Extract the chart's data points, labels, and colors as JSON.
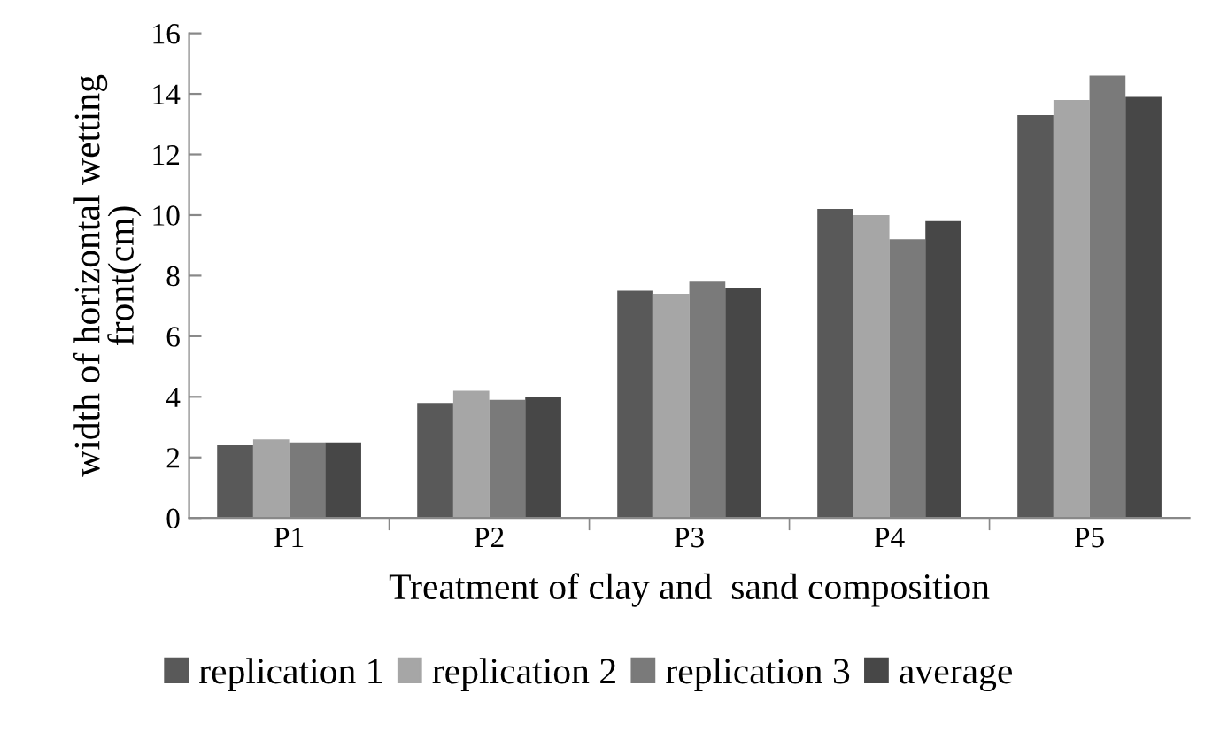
{
  "chart_data": {
    "type": "bar",
    "xlabel": "Treatment of clay and  sand composition",
    "ylabel": "width of horizontal wetting\nfront(cm)",
    "categories": [
      "P1",
      "P2",
      "P3",
      "P4",
      "P5"
    ],
    "series": [
      {
        "name": "replication 1",
        "color": "#595959",
        "values": [
          2.4,
          3.8,
          7.5,
          10.2,
          13.3
        ]
      },
      {
        "name": "replication 2",
        "color": "#a6a6a6",
        "values": [
          2.6,
          4.2,
          7.4,
          10.0,
          13.8
        ]
      },
      {
        "name": "replication 3",
        "color": "#7a7a7a",
        "values": [
          2.5,
          3.9,
          7.8,
          9.2,
          14.6
        ]
      },
      {
        "name": "average",
        "color": "#474747",
        "values": [
          2.5,
          4.0,
          7.6,
          9.8,
          13.9
        ]
      }
    ],
    "ylim": [
      0,
      16
    ],
    "yticks": [
      0,
      2,
      4,
      6,
      8,
      10,
      12,
      14,
      16
    ],
    "grid": false,
    "legend": "bottom"
  }
}
